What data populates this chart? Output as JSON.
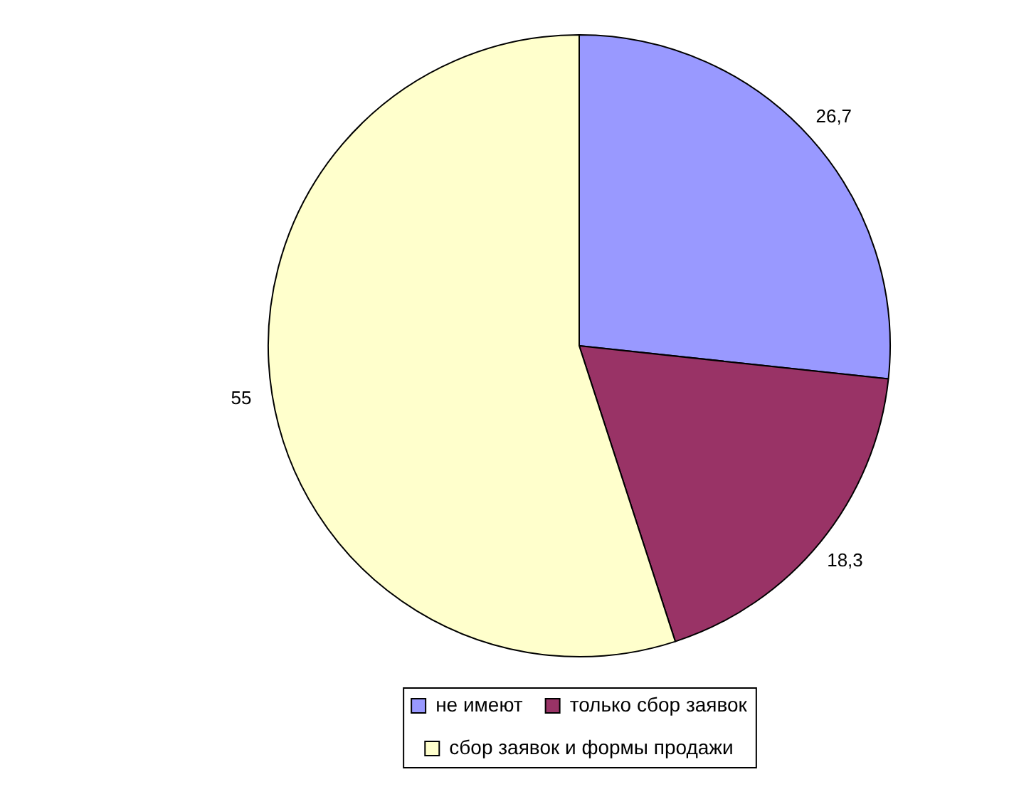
{
  "chart_data": {
    "type": "pie",
    "categories": [
      "не имеют",
      "только сбор заявок",
      "сбор заявок и формы продажи"
    ],
    "values": [
      26.7,
      18.3,
      55
    ],
    "colors": [
      "#9999ff",
      "#993366",
      "#ffffcc"
    ],
    "value_labels": [
      "26,7",
      "18,3",
      "55"
    ],
    "legend": "bottom"
  }
}
